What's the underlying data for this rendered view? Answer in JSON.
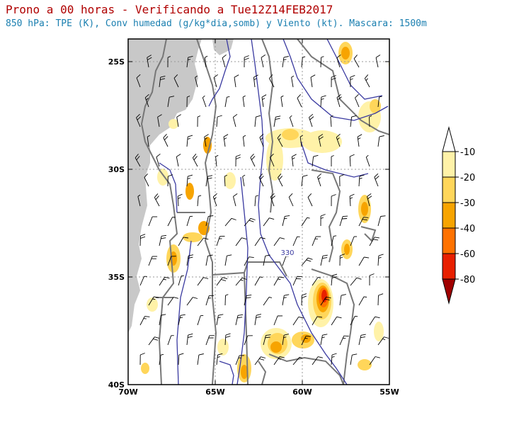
{
  "header": {
    "title": "Prono a 00 horas - Verificando a Tue12Z14FEB2017",
    "subtitle": "850 hPa: TPE (K), Conv humedad (g/kg*dia,somb) y Viento (kt). Mascara: 1500m"
  },
  "map": {
    "lat_labels": [
      "25S",
      "30S",
      "35S",
      "40S"
    ],
    "lon_labels": [
      "70W",
      "65W",
      "60W",
      "55W"
    ],
    "contour_label": "330",
    "colors": {
      "mask": "#c8c8c8",
      "boundary": "#777777",
      "contour": "#3a3aa0",
      "grid": "#999999",
      "barb": "#000000"
    }
  },
  "legend": {
    "levels": [
      "-10",
      "-20",
      "-30",
      "-40",
      "-60",
      "-80"
    ],
    "colors": [
      "#fff2a8",
      "#ffd65a",
      "#f7a400",
      "#ff7200",
      "#e82000",
      "#a00000"
    ]
  }
}
